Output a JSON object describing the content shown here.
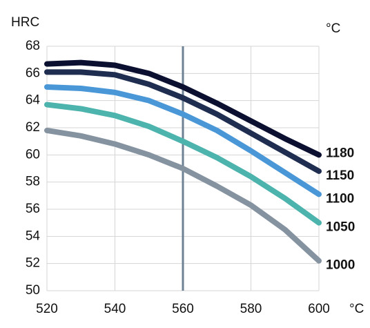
{
  "chart_data": {
    "type": "line",
    "ylabel": "HRC",
    "xlabel": "°C",
    "legend_title": "°C",
    "x": [
      520,
      530,
      540,
      550,
      560,
      570,
      580,
      590,
      600
    ],
    "series": [
      {
        "name": "1180",
        "color": "#0b1030",
        "values": [
          66.7,
          66.8,
          66.6,
          66.0,
          65.0,
          63.8,
          62.5,
          61.2,
          60.0
        ]
      },
      {
        "name": "1150",
        "color": "#1f2e50",
        "values": [
          66.1,
          66.1,
          65.9,
          65.2,
          64.2,
          63.0,
          61.6,
          60.2,
          58.8
        ]
      },
      {
        "name": "1100",
        "color": "#4a97d8",
        "values": [
          65.0,
          64.9,
          64.6,
          64.0,
          63.0,
          61.8,
          60.3,
          58.7,
          57.1
        ]
      },
      {
        "name": "1050",
        "color": "#4db3ad",
        "values": [
          63.7,
          63.4,
          62.9,
          62.1,
          61.0,
          59.8,
          58.4,
          56.8,
          55.0
        ]
      },
      {
        "name": "1000",
        "color": "#8592a0",
        "values": [
          61.8,
          61.4,
          60.8,
          60.0,
          59.0,
          57.7,
          56.3,
          54.5,
          52.2
        ]
      }
    ],
    "vline": 560,
    "vline_color": "#6e8296",
    "xlim": [
      520,
      600
    ],
    "xticks": [
      520,
      540,
      560,
      580,
      600
    ],
    "ylim": [
      50,
      68
    ],
    "yticks": [
      50,
      52,
      54,
      56,
      58,
      60,
      62,
      64,
      66,
      68
    ],
    "grid": true
  }
}
